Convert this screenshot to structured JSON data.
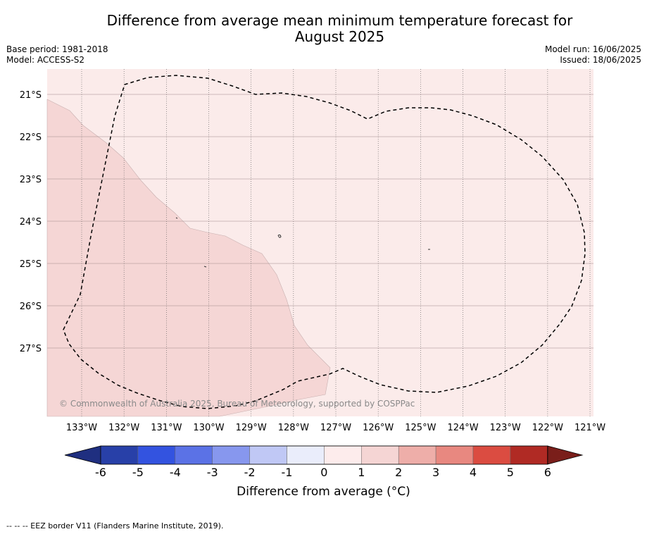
{
  "title_line1": "Difference from average mean minimum temperature forecast for",
  "title_line2": "August 2025",
  "meta": {
    "base_period": "Base period: 1981-2018",
    "model": "Model: ACCESS-S2",
    "model_run": "Model run: 16/06/2025",
    "issued": "Issued: 18/06/2025"
  },
  "map": {
    "lon_ticks": [
      "133°W",
      "132°W",
      "131°W",
      "130°W",
      "129°W",
      "128°W",
      "127°W",
      "126°W",
      "125°W",
      "124°W",
      "123°W",
      "122°W",
      "121°W"
    ],
    "lat_ticks": [
      "21°S",
      "22°S",
      "23°S",
      "24°S",
      "25°S",
      "26°S",
      "27°S"
    ],
    "copyright": "© Commonwealth of Australia 2025, Bureau of Meteorology, supported by COSPPac",
    "region_colors": {
      "category_0_1": "#fbebea",
      "category_1_2": "#f5d6d5"
    }
  },
  "colorbar": {
    "label": "Difference from average (°C)",
    "ticks": [
      "-6",
      "-5",
      "-4",
      "-3",
      "-2",
      "-1",
      "0",
      "1",
      "2",
      "3",
      "4",
      "5",
      "6"
    ],
    "colors": [
      "#2840a8",
      "#3353e0",
      "#5b72e6",
      "#8797ee",
      "#c0c8f5",
      "#eaedfb",
      "#fdecec",
      "#f5d5d4",
      "#eeaea9",
      "#e88880",
      "#db4c41",
      "#b02a24"
    ],
    "low_extend_color": "#1f2f80",
    "high_extend_color": "#7a1e1a"
  },
  "footer": "-- -- -- EEZ border V11 (Flanders Marine Institute, 2019)."
}
